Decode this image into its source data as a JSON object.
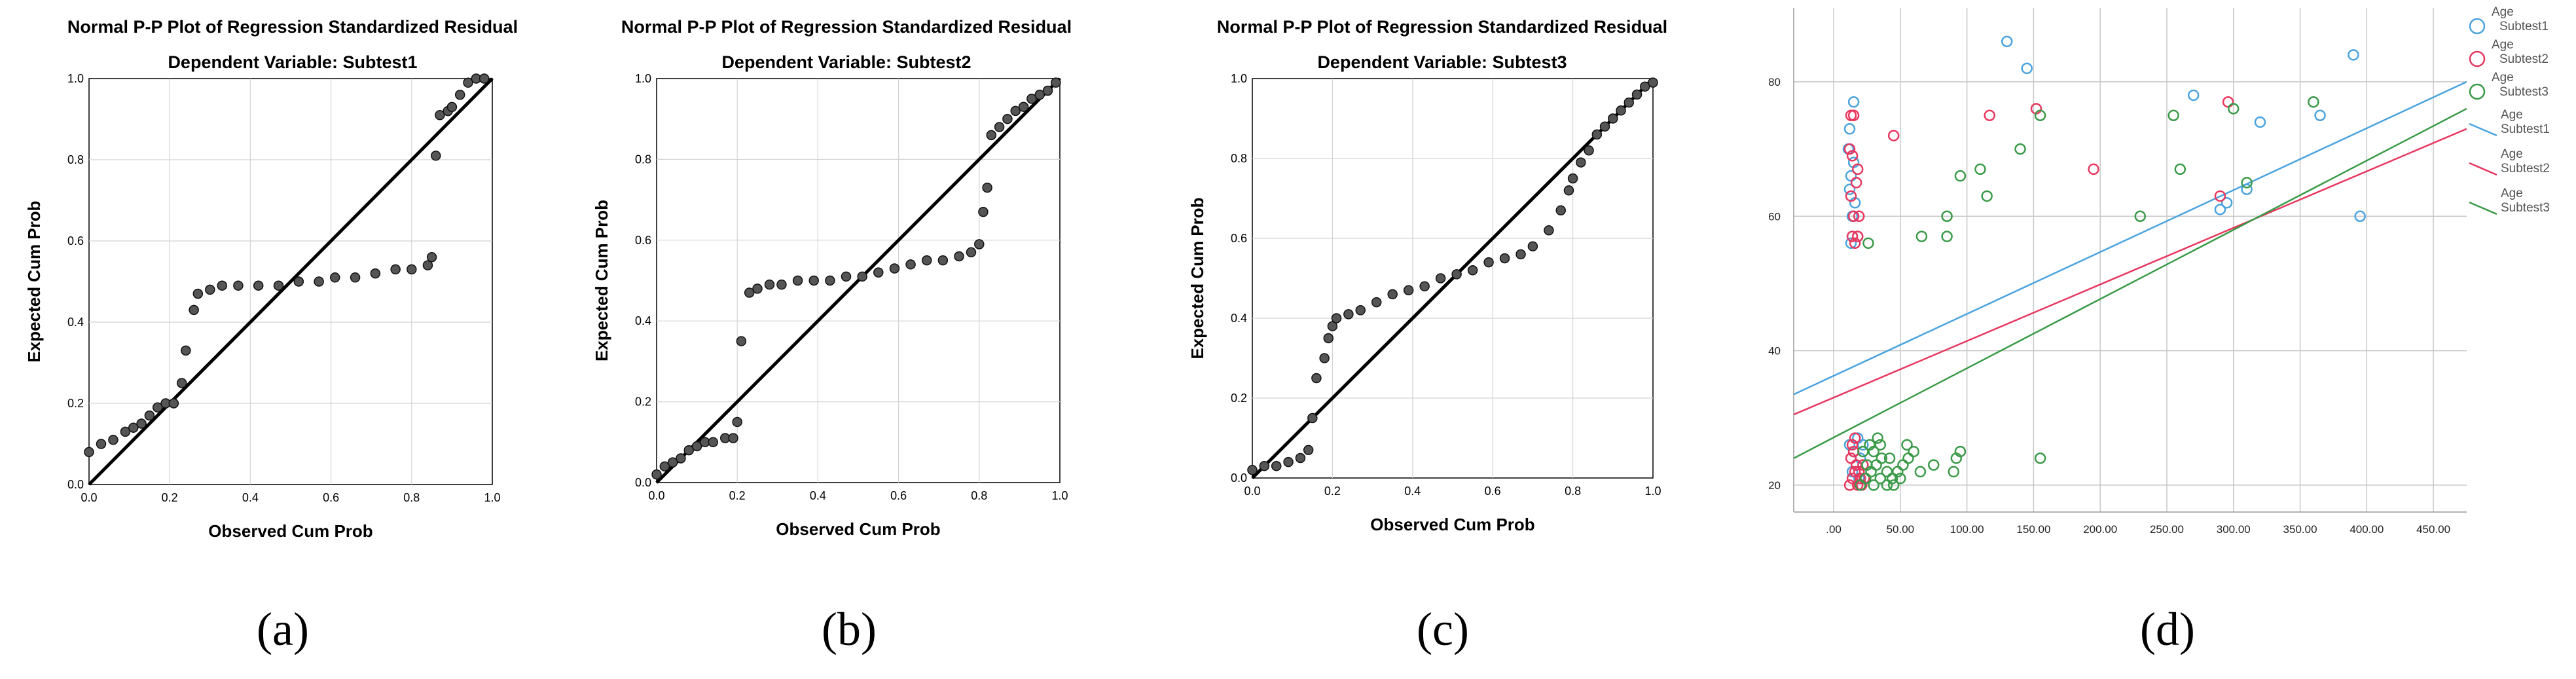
{
  "figure": {
    "captions": [
      "(a)",
      "(b)",
      "(c)",
      "(d)"
    ]
  },
  "chart_data": [
    {
      "type": "scatter",
      "panel": "a",
      "title": "Normal P-P Plot of Regression Standardized Residual",
      "subtitle": "Dependent Variable: Subtest1",
      "xlabel": "Observed Cum Prob",
      "ylabel": "Expected Cum Prob",
      "xlim": [
        0,
        1
      ],
      "ylim": [
        0,
        1
      ],
      "xticks": [
        "0.0",
        "0.2",
        "0.4",
        "0.6",
        "0.8",
        "1.0"
      ],
      "yticks": [
        "0.0",
        "0.2",
        "0.4",
        "0.6",
        "0.8",
        "1.0"
      ],
      "grid": true,
      "reference_line": [
        [
          0,
          0
        ],
        [
          1,
          1
        ]
      ],
      "points": [
        [
          0.0,
          0.08
        ],
        [
          0.03,
          0.1
        ],
        [
          0.06,
          0.11
        ],
        [
          0.09,
          0.13
        ],
        [
          0.11,
          0.14
        ],
        [
          0.13,
          0.15
        ],
        [
          0.15,
          0.17
        ],
        [
          0.17,
          0.19
        ],
        [
          0.19,
          0.2
        ],
        [
          0.21,
          0.2
        ],
        [
          0.23,
          0.25
        ],
        [
          0.24,
          0.33
        ],
        [
          0.26,
          0.43
        ],
        [
          0.27,
          0.47
        ],
        [
          0.3,
          0.48
        ],
        [
          0.33,
          0.49
        ],
        [
          0.37,
          0.49
        ],
        [
          0.42,
          0.49
        ],
        [
          0.47,
          0.49
        ],
        [
          0.52,
          0.5
        ],
        [
          0.57,
          0.5
        ],
        [
          0.61,
          0.51
        ],
        [
          0.66,
          0.51
        ],
        [
          0.71,
          0.52
        ],
        [
          0.76,
          0.53
        ],
        [
          0.8,
          0.53
        ],
        [
          0.84,
          0.54
        ],
        [
          0.85,
          0.56
        ],
        [
          0.86,
          0.81
        ],
        [
          0.87,
          0.91
        ],
        [
          0.89,
          0.92
        ],
        [
          0.9,
          0.93
        ],
        [
          0.92,
          0.96
        ],
        [
          0.94,
          0.99
        ],
        [
          0.96,
          1.0
        ],
        [
          0.98,
          1.0
        ]
      ]
    },
    {
      "type": "scatter",
      "panel": "b",
      "title": "Normal P-P Plot of Regression Standardized Residual",
      "subtitle": "Dependent Variable: Subtest2",
      "xlabel": "Observed Cum Prob",
      "ylabel": "Expected Cum Prob",
      "xlim": [
        0,
        1
      ],
      "ylim": [
        0,
        1
      ],
      "xticks": [
        "0.0",
        "0.2",
        "0.4",
        "0.6",
        "0.8",
        "1.0"
      ],
      "yticks": [
        "0.0",
        "0.2",
        "0.4",
        "0.6",
        "0.8",
        "1.0"
      ],
      "grid": true,
      "reference_line": [
        [
          0,
          0
        ],
        [
          1,
          1
        ]
      ],
      "points": [
        [
          0.0,
          0.02
        ],
        [
          0.02,
          0.04
        ],
        [
          0.04,
          0.05
        ],
        [
          0.06,
          0.06
        ],
        [
          0.08,
          0.08
        ],
        [
          0.1,
          0.09
        ],
        [
          0.12,
          0.1
        ],
        [
          0.14,
          0.1
        ],
        [
          0.17,
          0.11
        ],
        [
          0.19,
          0.11
        ],
        [
          0.2,
          0.15
        ],
        [
          0.21,
          0.35
        ],
        [
          0.23,
          0.47
        ],
        [
          0.25,
          0.48
        ],
        [
          0.28,
          0.49
        ],
        [
          0.31,
          0.49
        ],
        [
          0.35,
          0.5
        ],
        [
          0.39,
          0.5
        ],
        [
          0.43,
          0.5
        ],
        [
          0.47,
          0.51
        ],
        [
          0.51,
          0.51
        ],
        [
          0.55,
          0.52
        ],
        [
          0.59,
          0.53
        ],
        [
          0.63,
          0.54
        ],
        [
          0.67,
          0.55
        ],
        [
          0.71,
          0.55
        ],
        [
          0.75,
          0.56
        ],
        [
          0.78,
          0.57
        ],
        [
          0.8,
          0.59
        ],
        [
          0.81,
          0.67
        ],
        [
          0.82,
          0.73
        ],
        [
          0.83,
          0.86
        ],
        [
          0.85,
          0.88
        ],
        [
          0.87,
          0.9
        ],
        [
          0.89,
          0.92
        ],
        [
          0.91,
          0.93
        ],
        [
          0.93,
          0.95
        ],
        [
          0.95,
          0.96
        ],
        [
          0.97,
          0.97
        ],
        [
          0.99,
          0.99
        ]
      ]
    },
    {
      "type": "scatter",
      "panel": "c",
      "title": "Normal P-P Plot of Regression Standardized Residual",
      "subtitle": "Dependent Variable: Subtest3",
      "xlabel": "Observed Cum Prob",
      "ylabel": "Expected Cum Prob",
      "xlim": [
        0,
        1
      ],
      "ylim": [
        0,
        1
      ],
      "xticks": [
        "0.0",
        "0.2",
        "0.4",
        "0.6",
        "0.8",
        "1.0"
      ],
      "yticks": [
        "0.0",
        "0.2",
        "0.4",
        "0.6",
        "0.8",
        "1.0"
      ],
      "grid": true,
      "reference_line": [
        [
          0,
          0
        ],
        [
          1,
          1
        ]
      ],
      "points": [
        [
          0.0,
          0.02
        ],
        [
          0.03,
          0.03
        ],
        [
          0.06,
          0.03
        ],
        [
          0.09,
          0.04
        ],
        [
          0.12,
          0.05
        ],
        [
          0.14,
          0.07
        ],
        [
          0.15,
          0.15
        ],
        [
          0.16,
          0.25
        ],
        [
          0.18,
          0.3
        ],
        [
          0.19,
          0.35
        ],
        [
          0.2,
          0.38
        ],
        [
          0.21,
          0.4
        ],
        [
          0.24,
          0.41
        ],
        [
          0.27,
          0.42
        ],
        [
          0.31,
          0.44
        ],
        [
          0.35,
          0.46
        ],
        [
          0.39,
          0.47
        ],
        [
          0.43,
          0.48
        ],
        [
          0.47,
          0.5
        ],
        [
          0.51,
          0.51
        ],
        [
          0.55,
          0.52
        ],
        [
          0.59,
          0.54
        ],
        [
          0.63,
          0.55
        ],
        [
          0.67,
          0.56
        ],
        [
          0.7,
          0.58
        ],
        [
          0.74,
          0.62
        ],
        [
          0.77,
          0.67
        ],
        [
          0.79,
          0.72
        ],
        [
          0.8,
          0.75
        ],
        [
          0.82,
          0.79
        ],
        [
          0.84,
          0.82
        ],
        [
          0.86,
          0.86
        ],
        [
          0.88,
          0.88
        ],
        [
          0.9,
          0.9
        ],
        [
          0.92,
          0.92
        ],
        [
          0.94,
          0.94
        ],
        [
          0.96,
          0.96
        ],
        [
          0.98,
          0.98
        ],
        [
          1.0,
          0.99
        ]
      ]
    },
    {
      "type": "scatter",
      "panel": "d",
      "title": "",
      "xlabel": "",
      "ylabel": "",
      "xlim": [
        -30,
        475
      ],
      "ylim": [
        16,
        91
      ],
      "xticks": [
        ".00",
        "50.00",
        "100.00",
        "150.00",
        "200.00",
        "250.00",
        "300.00",
        "350.00",
        "400.00",
        "450.00"
      ],
      "xtick_values": [
        0,
        50,
        100,
        150,
        200,
        250,
        300,
        350,
        400,
        450
      ],
      "yticks": [
        "20",
        "40",
        "60",
        "80"
      ],
      "ytick_values": [
        20,
        40,
        60,
        80
      ],
      "grid": true,
      "legend_placement": "right",
      "series": [
        {
          "name": "Age Subtest1",
          "color": "#4aa3df",
          "fit_line_label": "Age Subtest1",
          "fit_line": [
            [
              -30,
              33.5
            ],
            [
              475,
              80
            ]
          ],
          "points": [
            [
              12,
              73
            ],
            [
              15,
              77
            ],
            [
              11,
              70
            ],
            [
              13,
              66
            ],
            [
              15,
              68
            ],
            [
              12,
              64
            ],
            [
              14,
              60
            ],
            [
              13,
              56
            ],
            [
              16,
              62
            ],
            [
              18,
              57
            ],
            [
              14,
              57
            ],
            [
              130,
              86
            ],
            [
              145,
              82
            ],
            [
              270,
              78
            ],
            [
              290,
              61
            ],
            [
              295,
              62
            ],
            [
              310,
              64
            ],
            [
              320,
              74
            ],
            [
              365,
              75
            ],
            [
              390,
              84
            ],
            [
              395,
              60
            ],
            [
              12,
              26
            ],
            [
              15,
              25
            ],
            [
              18,
              27
            ],
            [
              20,
              24
            ],
            [
              22,
              26
            ],
            [
              14,
              22
            ],
            [
              17,
              23
            ],
            [
              19,
              21
            ]
          ]
        },
        {
          "name": "Age Subtest2",
          "color": "#e8375f",
          "fit_line_label": "Age Subtest2",
          "fit_line": [
            [
              -30,
              30.5
            ],
            [
              475,
              73
            ]
          ],
          "points": [
            [
              13,
              75
            ],
            [
              15,
              75
            ],
            [
              12,
              70
            ],
            [
              14,
              69
            ],
            [
              18,
              67
            ],
            [
              17,
              65
            ],
            [
              13,
              63
            ],
            [
              15,
              60
            ],
            [
              19,
              60
            ],
            [
              14,
              57
            ],
            [
              18,
              57
            ],
            [
              16,
              56
            ],
            [
              45,
              72
            ],
            [
              117,
              75
            ],
            [
              152,
              76
            ],
            [
              195,
              67
            ],
            [
              296,
              77
            ],
            [
              290,
              63
            ],
            [
              12,
              20
            ],
            [
              14,
              21
            ],
            [
              16,
              22
            ],
            [
              18,
              20
            ],
            [
              20,
              21
            ],
            [
              22,
              23
            ],
            [
              13,
              24
            ],
            [
              15,
              25
            ],
            [
              17,
              23
            ],
            [
              19,
              22
            ],
            [
              21,
              20
            ],
            [
              23,
              21
            ],
            [
              14,
              26
            ],
            [
              16,
              27
            ]
          ]
        },
        {
          "name": "Age Subtest3",
          "color": "#3a9a48",
          "fit_line_label": "Age Subtest3",
          "fit_line": [
            [
              -30,
              24
            ],
            [
              475,
              76
            ]
          ],
          "points": [
            [
              26,
              56
            ],
            [
              66,
              57
            ],
            [
              85,
              57
            ],
            [
              85,
              60
            ],
            [
              95,
              66
            ],
            [
              110,
              67
            ],
            [
              115,
              63
            ],
            [
              140,
              70
            ],
            [
              155,
              75
            ],
            [
              230,
              60
            ],
            [
              255,
              75
            ],
            [
              260,
              67
            ],
            [
              300,
              76
            ],
            [
              310,
              65
            ],
            [
              360,
              77
            ],
            [
              20,
              20
            ],
            [
              24,
              21
            ],
            [
              28,
              22
            ],
            [
              32,
              23
            ],
            [
              36,
              24
            ],
            [
              40,
              20
            ],
            [
              44,
              21
            ],
            [
              48,
              22
            ],
            [
              52,
              23
            ],
            [
              56,
              24
            ],
            [
              30,
              25
            ],
            [
              35,
              26
            ],
            [
              40,
              22
            ],
            [
              45,
              20
            ],
            [
              50,
              21
            ],
            [
              25,
              23
            ],
            [
              30,
              20
            ],
            [
              35,
              21
            ],
            [
              42,
              24
            ],
            [
              55,
              26
            ],
            [
              60,
              25
            ],
            [
              65,
              22
            ],
            [
              75,
              23
            ],
            [
              90,
              22
            ],
            [
              95,
              25
            ],
            [
              92,
              24
            ],
            [
              155,
              24
            ],
            [
              22,
              25
            ],
            [
              27,
              26
            ],
            [
              33,
              27
            ]
          ]
        }
      ]
    }
  ]
}
